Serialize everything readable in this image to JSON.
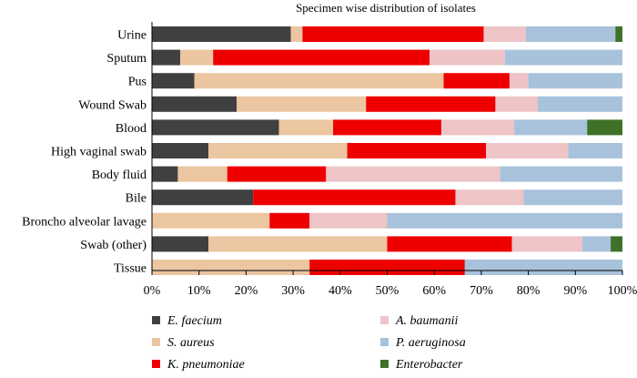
{
  "chart_data": {
    "type": "bar",
    "orientation": "horizontal",
    "stacked": true,
    "title": "Specimen wise distribution of isolates",
    "xlabel": "",
    "ylabel": "",
    "xlim": [
      0,
      100
    ],
    "x_ticks": [
      "0%",
      "10%",
      "20%",
      "30%",
      "40%",
      "50%",
      "60%",
      "70%",
      "80%",
      "90%",
      "100%"
    ],
    "grid": false,
    "legend_position": "bottom",
    "categories": [
      "Urine",
      "Sputum",
      "Pus",
      "Wound Swab",
      "Blood",
      "High vaginal swab",
      "Body fluid",
      "Bile",
      "Broncho alveolar lavage",
      "Swab (other)",
      "Tissue"
    ],
    "series": [
      {
        "name": "E. faecium",
        "color": "#404040",
        "values": [
          29.5,
          6,
          9,
          18,
          27,
          12,
          5.5,
          21.5,
          0,
          12,
          0
        ]
      },
      {
        "name": "S. aureus",
        "color": "#ebc6a1",
        "values": [
          2.5,
          7,
          53,
          27.5,
          11.5,
          29.5,
          10.5,
          0,
          25,
          38,
          33.5
        ]
      },
      {
        "name": "K. pneumoniae",
        "color": "#ee0000",
        "values": [
          38.5,
          46,
          14,
          27.5,
          23,
          29.5,
          21,
          43,
          8.5,
          26.5,
          33
        ]
      },
      {
        "name": "A. baumanii",
        "color": "#eec4c6",
        "values": [
          9,
          16,
          4,
          9,
          15.5,
          17.5,
          37,
          14.5,
          16.5,
          15,
          0
        ]
      },
      {
        "name": "P. aeruginosa",
        "color": "#a8c2dc",
        "values": [
          19,
          25,
          20,
          18,
          15.5,
          11.5,
          26,
          21,
          50,
          6,
          33.5
        ]
      },
      {
        "name": "Enterobacter",
        "color": "#3f7129",
        "values": [
          1.5,
          0,
          0,
          0,
          7.5,
          0,
          0,
          0,
          0,
          2.5,
          0
        ]
      }
    ]
  }
}
